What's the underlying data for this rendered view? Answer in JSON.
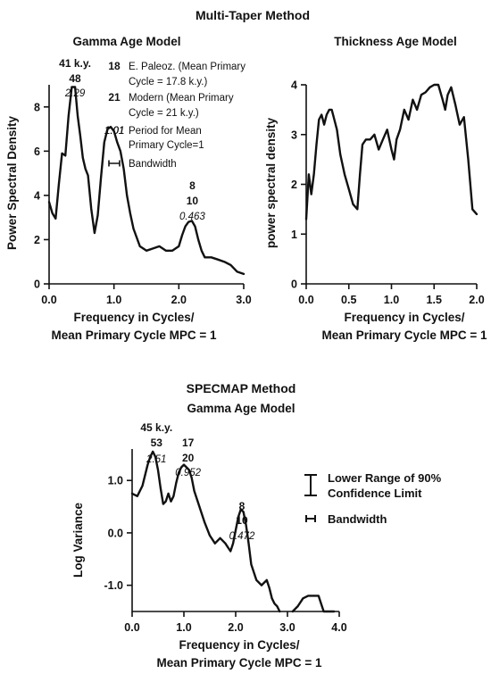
{
  "figure_title": "Multi-Taper Method",
  "bottom_section_title": "SPECMAP Method",
  "chart_data": [
    {
      "id": "gamma",
      "type": "line",
      "title": "Gamma Age Model",
      "xlabel": [
        "Frequency in Cycles/",
        "Mean Primary Cycle MPC = 1"
      ],
      "ylabel": "Power Spectral Density",
      "xlim": [
        0,
        3
      ],
      "ylim": [
        0,
        9
      ],
      "xticks": [
        0,
        1,
        2,
        3
      ],
      "xtick_labels": [
        "0.0",
        "1.0",
        "2.0",
        "3.0"
      ],
      "yticks": [
        0,
        2,
        4,
        6,
        8
      ],
      "ytick_labels": [
        "0",
        "2",
        "4",
        "6",
        "8"
      ],
      "series": [
        {
          "x": [
            0,
            0.05,
            0.1,
            0.15,
            0.2,
            0.25,
            0.3,
            0.35,
            0.4,
            0.44,
            0.48,
            0.52,
            0.56,
            0.6,
            0.65,
            0.7,
            0.75,
            0.8,
            0.85,
            0.9,
            0.95,
            1.0,
            1.05,
            1.1,
            1.15,
            1.2,
            1.25,
            1.3,
            1.4,
            1.5,
            1.6,
            1.7,
            1.8,
            1.9,
            2.0,
            2.05,
            2.1,
            2.15,
            2.2,
            2.25,
            2.3,
            2.35,
            2.4,
            2.5,
            2.6,
            2.7,
            2.8,
            2.9,
            3.0
          ],
          "y": [
            3.7,
            3.2,
            2.95,
            4.5,
            5.9,
            5.8,
            7.6,
            8.9,
            8.9,
            7.6,
            6.7,
            5.7,
            5.2,
            4.9,
            3.4,
            2.3,
            3.1,
            4.8,
            6.4,
            7.0,
            7.1,
            6.9,
            6.4,
            6.0,
            5.2,
            4.0,
            3.2,
            2.5,
            1.7,
            1.5,
            1.6,
            1.7,
            1.5,
            1.5,
            1.7,
            2.2,
            2.6,
            2.8,
            2.85,
            2.6,
            2.0,
            1.5,
            1.2,
            1.2,
            1.1,
            1.0,
            0.85,
            0.55,
            0.45
          ]
        }
      ],
      "annotations": [
        {
          "x": 0.4,
          "lines": [
            "41 k.y.",
            "48",
            "2.29"
          ]
        },
        {
          "x": 1.01,
          "lines": [
            "1.01"
          ]
        },
        {
          "x": 2.18,
          "lines": [
            "8",
            "10",
            "0.463"
          ]
        }
      ],
      "legend": {
        "position": "top-right",
        "items": [
          {
            "key": "18",
            "text": [
              "E. Paleoz. (Mean Primary",
              "Cycle = 17.8 k.y.)"
            ]
          },
          {
            "key": "21",
            "text": [
              "Modern (Mean Primary",
              "Cycle = 21 k.y.)"
            ]
          },
          {
            "key": "1.01",
            "text": [
              "Period for Mean",
              "Primary Cycle=1"
            ]
          },
          {
            "key": "",
            "text": [
              "Bandwidth"
            ]
          }
        ]
      }
    },
    {
      "id": "thickness",
      "type": "line",
      "title": "Thickness Age Model",
      "xlabel": [
        "Frequency in Cycles/",
        "Mean Primary Cycle MPC = 1"
      ],
      "ylabel": "power spectral density",
      "xlim": [
        0,
        2
      ],
      "ylim": [
        0,
        4
      ],
      "xticks": [
        0,
        0.5,
        1,
        1.5,
        2
      ],
      "xtick_labels": [
        "0.0",
        "0.5",
        "1.0",
        "1.5",
        "2.0"
      ],
      "yticks": [
        0,
        1,
        2,
        3,
        4
      ],
      "ytick_labels": [
        "0",
        "1",
        "2",
        "3",
        "4"
      ],
      "series": [
        {
          "x": [
            0,
            0.03,
            0.06,
            0.09,
            0.12,
            0.15,
            0.18,
            0.21,
            0.24,
            0.27,
            0.3,
            0.33,
            0.36,
            0.4,
            0.45,
            0.5,
            0.55,
            0.6,
            0.63,
            0.66,
            0.7,
            0.75,
            0.8,
            0.85,
            0.9,
            0.95,
            1.0,
            1.03,
            1.06,
            1.1,
            1.15,
            1.2,
            1.25,
            1.3,
            1.35,
            1.4,
            1.45,
            1.5,
            1.55,
            1.6,
            1.63,
            1.66,
            1.7,
            1.75,
            1.8,
            1.85,
            1.9,
            1.95,
            2.0
          ],
          "y": [
            1.3,
            2.2,
            1.8,
            2.2,
            2.8,
            3.3,
            3.4,
            3.2,
            3.4,
            3.5,
            3.5,
            3.3,
            3.1,
            2.6,
            2.2,
            1.9,
            1.6,
            1.5,
            2.2,
            2.8,
            2.9,
            2.9,
            3.0,
            2.7,
            2.9,
            3.1,
            2.7,
            2.5,
            2.9,
            3.1,
            3.5,
            3.3,
            3.7,
            3.5,
            3.8,
            3.85,
            3.95,
            4.0,
            4.0,
            3.7,
            3.5,
            3.8,
            3.95,
            3.6,
            3.2,
            3.35,
            2.5,
            1.5,
            1.4
          ]
        }
      ]
    },
    {
      "id": "specmap",
      "type": "line",
      "title": "Gamma Age Model",
      "xlabel": [
        "Frequency in Cycles/",
        "Mean Primary Cycle MPC = 1"
      ],
      "ylabel": "Log Variance",
      "xlim": [
        0,
        4
      ],
      "ylim": [
        -1.5,
        1.6
      ],
      "xticks": [
        0,
        1,
        2,
        3,
        4
      ],
      "xtick_labels": [
        "0.0",
        "1.0",
        "2.0",
        "3.0",
        "4.0"
      ],
      "yticks": [
        1,
        0,
        -1
      ],
      "ytick_labels": [
        "1.0",
        "0.0",
        "-1.0"
      ],
      "series": [
        {
          "x": [
            0,
            0.1,
            0.2,
            0.3,
            0.35,
            0.4,
            0.45,
            0.5,
            0.55,
            0.6,
            0.65,
            0.7,
            0.75,
            0.8,
            0.85,
            0.9,
            0.95,
            1.0,
            1.05,
            1.1,
            1.15,
            1.2,
            1.3,
            1.4,
            1.5,
            1.6,
            1.7,
            1.8,
            1.9,
            1.95,
            2.0,
            2.05,
            2.1,
            2.15,
            2.2,
            2.25,
            2.3,
            2.35,
            2.4,
            2.5,
            2.6,
            2.65,
            2.7,
            2.75,
            2.8,
            2.85,
            null,
            3.1,
            3.2,
            3.3,
            3.4,
            3.5,
            3.6,
            3.65,
            3.7,
            3.8,
            3.9
          ],
          "y": [
            0.75,
            0.7,
            0.9,
            1.3,
            1.45,
            1.55,
            1.45,
            1.2,
            0.85,
            0.55,
            0.6,
            0.75,
            0.6,
            0.7,
            0.95,
            1.15,
            1.25,
            1.3,
            1.25,
            1.2,
            1.05,
            0.8,
            0.5,
            0.2,
            -0.05,
            -0.2,
            -0.1,
            -0.2,
            -0.35,
            -0.2,
            0.05,
            0.3,
            0.45,
            0.4,
            0.15,
            -0.2,
            -0.6,
            -0.75,
            -0.9,
            -1.0,
            -0.9,
            -1.05,
            -1.25,
            -1.35,
            -1.4,
            -1.5,
            null,
            -1.5,
            -1.4,
            -1.25,
            -1.2,
            -1.2,
            -1.2,
            -1.35,
            -1.5,
            -1.5,
            -1.5
          ]
        }
      ],
      "annotations": [
        {
          "x": 0.47,
          "lines": [
            "45 k.y.",
            "53",
            "2.51"
          ]
        },
        {
          "x": 1.08,
          "lines": [
            "17",
            "20",
            "0.952"
          ]
        },
        {
          "x": 2.12,
          "lines": [
            "8",
            "10",
            "0.472"
          ]
        }
      ],
      "legend": {
        "position": "right",
        "items": [
          {
            "key": "confidence",
            "text": [
              "Lower Range of 90%",
              "Confidence Limit"
            ]
          },
          {
            "key": "bandwidth",
            "text": [
              "Bandwidth"
            ]
          }
        ]
      }
    }
  ]
}
